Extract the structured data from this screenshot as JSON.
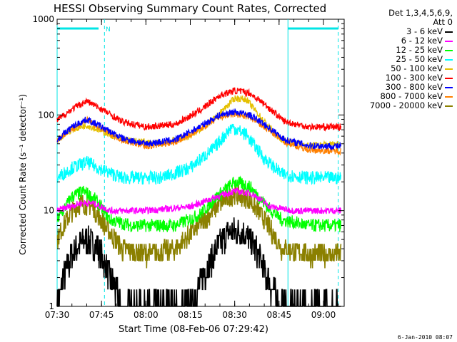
{
  "footer_text": "6-Jan-2010 08:07",
  "chart_data": {
    "type": "line",
    "title": "HESSI Observing Summary Count Rates, Corrected",
    "xlabel": "Start Time (08-Feb-06 07:29:42)",
    "ylabel": "Corrected Count Rate (s⁻¹ detector⁻¹)",
    "yscale": "log",
    "ylim": [
      1,
      1000
    ],
    "xlim": [
      "07:30",
      "09:07"
    ],
    "xticks": [
      "07:30",
      "07:45",
      "08:00",
      "08:15",
      "08:30",
      "08:45",
      "09:00"
    ],
    "yticks": [
      "1",
      "10",
      "100",
      "1000"
    ],
    "legend": {
      "header": [
        "Det 1,3,4,5,6,9,",
        "Att 0"
      ],
      "placement": "right"
    },
    "series": [
      {
        "name": "3 - 6 keV",
        "color": "#000000",
        "points": [
          [
            "07:30",
            1
          ],
          [
            "07:32",
            2
          ],
          [
            "07:36",
            4
          ],
          [
            "07:40",
            5
          ],
          [
            "07:44",
            4
          ],
          [
            "07:48",
            2
          ],
          [
            "07:52",
            1
          ],
          [
            "08:15",
            1
          ],
          [
            "08:19",
            2
          ],
          [
            "08:24",
            4
          ],
          [
            "08:28",
            6
          ],
          [
            "08:33",
            6
          ],
          [
            "08:37",
            4
          ],
          [
            "08:41",
            2
          ],
          [
            "08:45",
            1
          ],
          [
            "09:06",
            1
          ]
        ]
      },
      {
        "name": "6 - 12 keV",
        "color": "#ff00ff",
        "points": [
          [
            "07:30",
            10
          ],
          [
            "07:38",
            12
          ],
          [
            "07:42",
            12
          ],
          [
            "07:48",
            10
          ],
          [
            "08:00",
            10
          ],
          [
            "08:15",
            11
          ],
          [
            "08:24",
            14
          ],
          [
            "08:30",
            16
          ],
          [
            "08:36",
            15
          ],
          [
            "08:42",
            11
          ],
          [
            "08:50",
            10
          ],
          [
            "09:06",
            10
          ]
        ]
      },
      {
        "name": "12 - 25 keV",
        "color": "#00ff00",
        "points": [
          [
            "07:30",
            8
          ],
          [
            "07:35",
            14
          ],
          [
            "07:39",
            16
          ],
          [
            "07:43",
            13
          ],
          [
            "07:48",
            8
          ],
          [
            "07:55",
            7
          ],
          [
            "08:10",
            7
          ],
          [
            "08:18",
            9
          ],
          [
            "08:24",
            14
          ],
          [
            "08:30",
            20
          ],
          [
            "08:35",
            18
          ],
          [
            "08:41",
            11
          ],
          [
            "08:46",
            8
          ],
          [
            "08:55",
            7
          ],
          [
            "09:06",
            7
          ]
        ]
      },
      {
        "name": "25 - 50 keV",
        "color": "#00ffff",
        "points": [
          [
            "07:30",
            22
          ],
          [
            "07:35",
            28
          ],
          [
            "07:40",
            32
          ],
          [
            "07:45",
            27
          ],
          [
            "07:52",
            22
          ],
          [
            "08:05",
            22
          ],
          [
            "08:15",
            28
          ],
          [
            "08:23",
            45
          ],
          [
            "08:29",
            75
          ],
          [
            "08:34",
            62
          ],
          [
            "08:40",
            35
          ],
          [
            "08:46",
            24
          ],
          [
            "08:55",
            22
          ],
          [
            "09:06",
            22
          ]
        ]
      },
      {
        "name": "50 - 100 keV",
        "color": "#e5c000",
        "points": [
          [
            "07:30",
            55
          ],
          [
            "07:35",
            70
          ],
          [
            "07:40",
            78
          ],
          [
            "07:45",
            68
          ],
          [
            "07:52",
            55
          ],
          [
            "08:05",
            50
          ],
          [
            "08:15",
            60
          ],
          [
            "08:23",
            90
          ],
          [
            "08:30",
            150
          ],
          [
            "08:34",
            145
          ],
          [
            "08:40",
            85
          ],
          [
            "08:46",
            55
          ],
          [
            "08:55",
            48
          ],
          [
            "09:06",
            50
          ]
        ]
      },
      {
        "name": "100 - 300 keV",
        "color": "#ff0000",
        "points": [
          [
            "07:30",
            88
          ],
          [
            "07:35",
            115
          ],
          [
            "07:40",
            140
          ],
          [
            "07:45",
            115
          ],
          [
            "07:52",
            85
          ],
          [
            "08:00",
            75
          ],
          [
            "08:10",
            80
          ],
          [
            "08:18",
            110
          ],
          [
            "08:25",
            160
          ],
          [
            "08:30",
            180
          ],
          [
            "08:35",
            170
          ],
          [
            "08:40",
            130
          ],
          [
            "08:47",
            85
          ],
          [
            "08:55",
            75
          ],
          [
            "09:06",
            75
          ]
        ]
      },
      {
        "name": "300 - 800 keV",
        "color": "#0000ff",
        "points": [
          [
            "07:30",
            55
          ],
          [
            "07:35",
            75
          ],
          [
            "07:40",
            90
          ],
          [
            "07:45",
            75
          ],
          [
            "07:52",
            57
          ],
          [
            "08:00",
            50
          ],
          [
            "08:10",
            55
          ],
          [
            "08:18",
            75
          ],
          [
            "08:25",
            100
          ],
          [
            "08:30",
            108
          ],
          [
            "08:35",
            100
          ],
          [
            "08:40",
            80
          ],
          [
            "08:47",
            55
          ],
          [
            "08:55",
            48
          ],
          [
            "09:06",
            47
          ]
        ]
      },
      {
        "name": "800 - 7000 keV",
        "color": "#ff8000",
        "points": [
          [
            "07:30",
            55
          ],
          [
            "07:35",
            72
          ],
          [
            "07:40",
            88
          ],
          [
            "07:45",
            72
          ],
          [
            "07:52",
            55
          ],
          [
            "08:00",
            47
          ],
          [
            "08:10",
            52
          ],
          [
            "08:18",
            70
          ],
          [
            "08:25",
            95
          ],
          [
            "08:30",
            102
          ],
          [
            "08:35",
            95
          ],
          [
            "08:40",
            75
          ],
          [
            "08:47",
            52
          ],
          [
            "08:55",
            43
          ],
          [
            "09:06",
            42
          ]
        ]
      },
      {
        "name": "7000 - 20000 keV",
        "color": "#8b8000",
        "points": [
          [
            "07:30",
            5
          ],
          [
            "07:34",
            9
          ],
          [
            "07:38",
            12
          ],
          [
            "07:42",
            11
          ],
          [
            "07:46",
            7
          ],
          [
            "07:52",
            4
          ],
          [
            "08:00",
            3.5
          ],
          [
            "08:10",
            4
          ],
          [
            "08:18",
            7
          ],
          [
            "08:25",
            12
          ],
          [
            "08:30",
            15
          ],
          [
            "08:35",
            13
          ],
          [
            "08:40",
            8
          ],
          [
            "08:46",
            4
          ],
          [
            "08:55",
            3.5
          ],
          [
            "09:06",
            3.5
          ]
        ]
      }
    ],
    "events": {
      "vlines_solid": [
        "07:30",
        "08:48"
      ],
      "vlines_dashed": [
        "07:46",
        "09:05"
      ],
      "bars": [
        {
          "from": "07:30",
          "to": "07:44",
          "y": 800,
          "label": "N"
        },
        {
          "from": "08:48",
          "to": "09:05",
          "y": 800
        }
      ]
    }
  }
}
